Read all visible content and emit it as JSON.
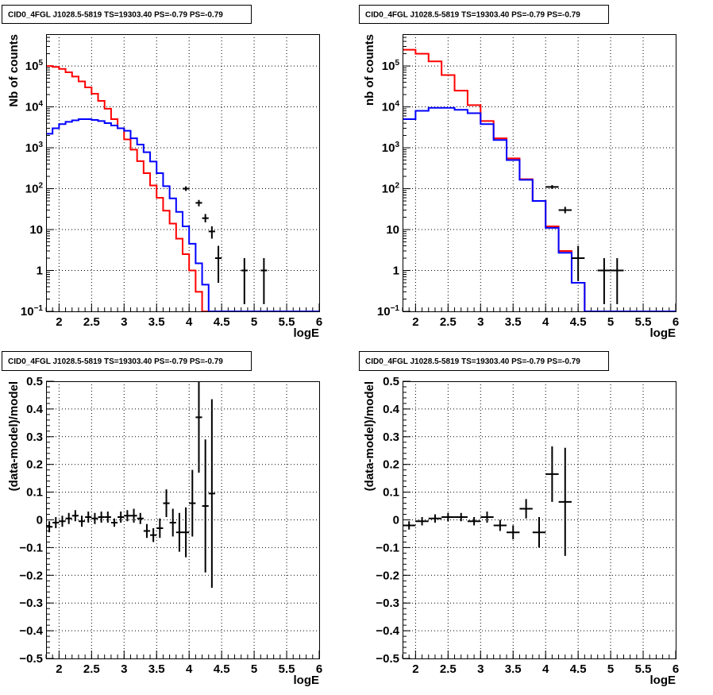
{
  "chart_data": [
    {
      "type": "line",
      "subtype": "histogram",
      "title": "CID0_4FGL J1028.5-5819 TS=19303.40 PS=-0.79 PS=-0.79",
      "xlabel": "logE",
      "ylabel": "Nb of counts",
      "xlim": [
        1.8,
        6.0
      ],
      "ylim": [
        0.1,
        600000
      ],
      "yscale": "log",
      "grid": true,
      "xticks": [
        "2",
        "2.5",
        "3",
        "3.5",
        "4",
        "4.5",
        "5",
        "5.5",
        "6"
      ],
      "yticks": [
        "10^-1",
        "1",
        "10",
        "10^2",
        "10^3",
        "10^4",
        "10^5"
      ],
      "bin_edges": [
        1.8,
        1.9,
        2.0,
        2.1,
        2.2,
        2.3,
        2.4,
        2.5,
        2.6,
        2.7,
        2.8,
        2.9,
        3.0,
        3.1,
        3.2,
        3.3,
        3.4,
        3.5,
        3.6,
        3.7,
        3.8,
        3.9,
        4.0,
        4.1,
        4.2,
        4.3,
        4.4,
        4.5,
        4.6,
        4.7,
        4.8,
        4.9,
        5.0,
        5.1,
        5.2,
        5.3,
        5.4,
        5.5,
        5.6,
        5.7,
        5.8,
        5.9,
        6.0
      ],
      "series": [
        {
          "color": "#ff0000",
          "values": [
            100000,
            95000,
            85000,
            70000,
            55000,
            42000,
            30000,
            21000,
            14000,
            9000,
            5000,
            3000,
            1600,
            900,
            470,
            240,
            120,
            60,
            29,
            14,
            6,
            2.5,
            1.0,
            0.3,
            0.1,
            0.1,
            0.1,
            0.1,
            0.1,
            0.1,
            0.1,
            0.1,
            0.1,
            0.1,
            0.1,
            0.1,
            0.1,
            0.1,
            0.1,
            0.1,
            0.1,
            0.1
          ]
        },
        {
          "color": "#0000ff",
          "values": [
            2200,
            3000,
            3800,
            4300,
            4700,
            5000,
            5000,
            4800,
            4500,
            4000,
            3500,
            3000,
            2600,
            1700,
            1200,
            780,
            460,
            240,
            115,
            58,
            27,
            12,
            4.5,
            1.5,
            0.45,
            0.1,
            0.1,
            0.1,
            0.1,
            0.1,
            0.1,
            0.1,
            0.1,
            0.1,
            0.1,
            0.1,
            0.1,
            0.1,
            0.1,
            0.1,
            0.1,
            0.1
          ]
        },
        {
          "color": "#000000",
          "style": "points",
          "points": [
            {
              "x": 3.95,
              "y": 100,
              "xerr": 0.05,
              "ylo": 88,
              "yhi": 114
            },
            {
              "x": 4.15,
              "y": 45,
              "xerr": 0.05,
              "ylo": 37,
              "yhi": 53
            },
            {
              "x": 4.25,
              "y": 19,
              "xerr": 0.05,
              "ylo": 15,
              "yhi": 24
            },
            {
              "x": 4.35,
              "y": 9,
              "xerr": 0.05,
              "ylo": 6,
              "yhi": 12
            },
            {
              "x": 4.45,
              "y": 2,
              "xerr": 0.05,
              "ylo": 0.5,
              "yhi": 4
            },
            {
              "x": 4.85,
              "y": 1,
              "xerr": 0.05,
              "ylo": 0.15,
              "yhi": 2
            },
            {
              "x": 5.15,
              "y": 1,
              "xerr": 0.05,
              "ylo": 0.15,
              "yhi": 2
            }
          ]
        }
      ]
    },
    {
      "type": "line",
      "subtype": "histogram",
      "title": "CID0_4FGL J1028.5-5819 TS=19303.40 PS=-0.79 PS=-0.79",
      "xlabel": "logE",
      "ylabel": "nb of counts",
      "xlim": [
        1.8,
        6.0
      ],
      "ylim": [
        0.1,
        600000
      ],
      "yscale": "log",
      "grid": true,
      "xticks": [
        "2",
        "2.5",
        "3",
        "3.5",
        "4",
        "4.5",
        "5",
        "5.5",
        "6"
      ],
      "yticks": [
        "10^-1",
        "1",
        "10",
        "10^2",
        "10^3",
        "10^4",
        "10^5"
      ],
      "bin_edges": [
        1.8,
        2.0,
        2.2,
        2.4,
        2.6,
        2.8,
        3.0,
        3.2,
        3.4,
        3.6,
        3.8,
        4.0,
        4.2,
        4.4,
        4.6,
        4.8,
        5.0,
        5.2,
        5.4,
        5.6,
        5.8,
        6.0
      ],
      "series": [
        {
          "color": "#ff0000",
          "values": [
            250000,
            200000,
            130000,
            60000,
            25000,
            11000,
            4500,
            1700,
            550,
            170,
            50,
            12,
            3,
            0.5,
            0.1,
            0.1,
            0.1,
            0.1,
            0.1,
            0.1,
            0.1
          ]
        },
        {
          "color": "#0000ff",
          "values": [
            5000,
            8000,
            9500,
            9500,
            8500,
            7000,
            3800,
            1550,
            500,
            165,
            50,
            11,
            2.7,
            0.5,
            0.1,
            0.1,
            0.1,
            0.1,
            0.1,
            0.1,
            0.1
          ]
        },
        {
          "color": "#000000",
          "style": "points",
          "points": [
            {
              "x": 4.1,
              "y": 110,
              "xerr": 0.1,
              "ylo": 98,
              "yhi": 122
            },
            {
              "x": 4.3,
              "y": 30,
              "xerr": 0.1,
              "ylo": 25,
              "yhi": 36
            },
            {
              "x": 4.5,
              "y": 2,
              "xerr": 0.1,
              "ylo": 0.55,
              "yhi": 4
            },
            {
              "x": 4.9,
              "y": 1,
              "xerr": 0.1,
              "ylo": 0.15,
              "yhi": 2
            },
            {
              "x": 5.1,
              "y": 1,
              "xerr": 0.1,
              "ylo": 0.15,
              "yhi": 2
            }
          ]
        }
      ]
    },
    {
      "type": "scatter",
      "title": "CID0_4FGL J1028.5-5819 TS=19303.40 PS=-0.79 PS=-0.79",
      "xlabel": "logE",
      "ylabel": "(data-model)/model",
      "xlim": [
        1.8,
        6.0
      ],
      "ylim": [
        -0.5,
        0.5
      ],
      "grid": true,
      "xticks": [
        "2",
        "2.5",
        "3",
        "3.5",
        "4",
        "4.5",
        "5",
        "5.5",
        "6"
      ],
      "yticks": [
        "-0.5",
        "-0.4",
        "-0.3",
        "-0.2",
        "-0.1",
        "0",
        "0.1",
        "0.2",
        "0.3",
        "0.4",
        "0.5"
      ],
      "series": [
        {
          "color": "#000000",
          "points": [
            {
              "x": 1.85,
              "y": -0.025,
              "xerr": 0.05,
              "yerr": 0.02
            },
            {
              "x": 1.95,
              "y": -0.01,
              "xerr": 0.05,
              "yerr": 0.02
            },
            {
              "x": 2.05,
              "y": -0.005,
              "xerr": 0.05,
              "yerr": 0.02
            },
            {
              "x": 2.15,
              "y": 0.005,
              "xerr": 0.05,
              "yerr": 0.02
            },
            {
              "x": 2.25,
              "y": 0.015,
              "xerr": 0.05,
              "yerr": 0.02
            },
            {
              "x": 2.35,
              "y": -0.005,
              "xerr": 0.05,
              "yerr": 0.02
            },
            {
              "x": 2.45,
              "y": 0.01,
              "xerr": 0.05,
              "yerr": 0.02
            },
            {
              "x": 2.55,
              "y": 0.005,
              "xerr": 0.05,
              "yerr": 0.02
            },
            {
              "x": 2.65,
              "y": 0.01,
              "xerr": 0.05,
              "yerr": 0.02
            },
            {
              "x": 2.75,
              "y": 0.01,
              "xerr": 0.05,
              "yerr": 0.02
            },
            {
              "x": 2.85,
              "y": -0.01,
              "xerr": 0.05,
              "yerr": 0.015
            },
            {
              "x": 2.95,
              "y": 0.01,
              "xerr": 0.05,
              "yerr": 0.02
            },
            {
              "x": 3.05,
              "y": 0.015,
              "xerr": 0.05,
              "yerr": 0.02
            },
            {
              "x": 3.15,
              "y": 0.015,
              "xerr": 0.05,
              "yerr": 0.025
            },
            {
              "x": 3.25,
              "y": 0.005,
              "xerr": 0.05,
              "yerr": 0.02
            },
            {
              "x": 3.35,
              "y": -0.04,
              "xerr": 0.05,
              "yerr": 0.025
            },
            {
              "x": 3.45,
              "y": -0.055,
              "xerr": 0.05,
              "yerr": 0.025
            },
            {
              "x": 3.55,
              "y": -0.03,
              "xerr": 0.05,
              "yerr": 0.035
            },
            {
              "x": 3.65,
              "y": 0.06,
              "xerr": 0.05,
              "yerr": 0.05
            },
            {
              "x": 3.75,
              "y": -0.01,
              "xerr": 0.05,
              "yerr": 0.05
            },
            {
              "x": 3.85,
              "y": -0.045,
              "xerr": 0.05,
              "yerr": 0.07
            },
            {
              "x": 3.95,
              "y": -0.045,
              "xerr": 0.05,
              "yerr": 0.09
            },
            {
              "x": 4.05,
              "y": 0.06,
              "xerr": 0.05,
              "yerr": 0.12
            },
            {
              "x": 4.15,
              "y": 0.37,
              "xerr": 0.05,
              "yerr": 0.2
            },
            {
              "x": 4.25,
              "y": 0.05,
              "xerr": 0.05,
              "yerr": 0.24
            },
            {
              "x": 4.35,
              "y": 0.095,
              "xerr": 0.05,
              "yerr": 0.34
            }
          ]
        }
      ]
    },
    {
      "type": "scatter",
      "title": "CID0_4FGL J1028.5-5819 TS=19303.40 PS=-0.79 PS=-0.79",
      "xlabel": "logE",
      "ylabel": "(data-model)/model",
      "xlim": [
        1.8,
        6.0
      ],
      "ylim": [
        -0.5,
        0.5
      ],
      "grid": true,
      "xticks": [
        "2",
        "2.5",
        "3",
        "3.5",
        "4",
        "4.5",
        "5",
        "5.5",
        "6"
      ],
      "yticks": [
        "-0.5",
        "-0.4",
        "-0.3",
        "-0.2",
        "-0.1",
        "0",
        "0.1",
        "0.2",
        "0.3",
        "0.4",
        "0.5"
      ],
      "series": [
        {
          "color": "#000000",
          "points": [
            {
              "x": 1.9,
              "y": -0.02,
              "xerr": 0.1,
              "yerr": 0.015
            },
            {
              "x": 2.1,
              "y": -0.005,
              "xerr": 0.1,
              "yerr": 0.015
            },
            {
              "x": 2.3,
              "y": 0.005,
              "xerr": 0.1,
              "yerr": 0.015
            },
            {
              "x": 2.5,
              "y": 0.01,
              "xerr": 0.1,
              "yerr": 0.015
            },
            {
              "x": 2.7,
              "y": 0.01,
              "xerr": 0.1,
              "yerr": 0.015
            },
            {
              "x": 2.9,
              "y": -0.005,
              "xerr": 0.1,
              "yerr": 0.015
            },
            {
              "x": 3.1,
              "y": 0.01,
              "xerr": 0.1,
              "yerr": 0.02
            },
            {
              "x": 3.3,
              "y": -0.02,
              "xerr": 0.1,
              "yerr": 0.02
            },
            {
              "x": 3.5,
              "y": -0.045,
              "xerr": 0.1,
              "yerr": 0.025
            },
            {
              "x": 3.7,
              "y": 0.04,
              "xerr": 0.1,
              "yerr": 0.035
            },
            {
              "x": 3.9,
              "y": -0.045,
              "xerr": 0.1,
              "yerr": 0.055
            },
            {
              "x": 4.1,
              "y": 0.165,
              "xerr": 0.1,
              "yerr": 0.1
            },
            {
              "x": 4.3,
              "y": 0.065,
              "xerr": 0.1,
              "yerr": 0.195
            }
          ]
        }
      ]
    }
  ]
}
